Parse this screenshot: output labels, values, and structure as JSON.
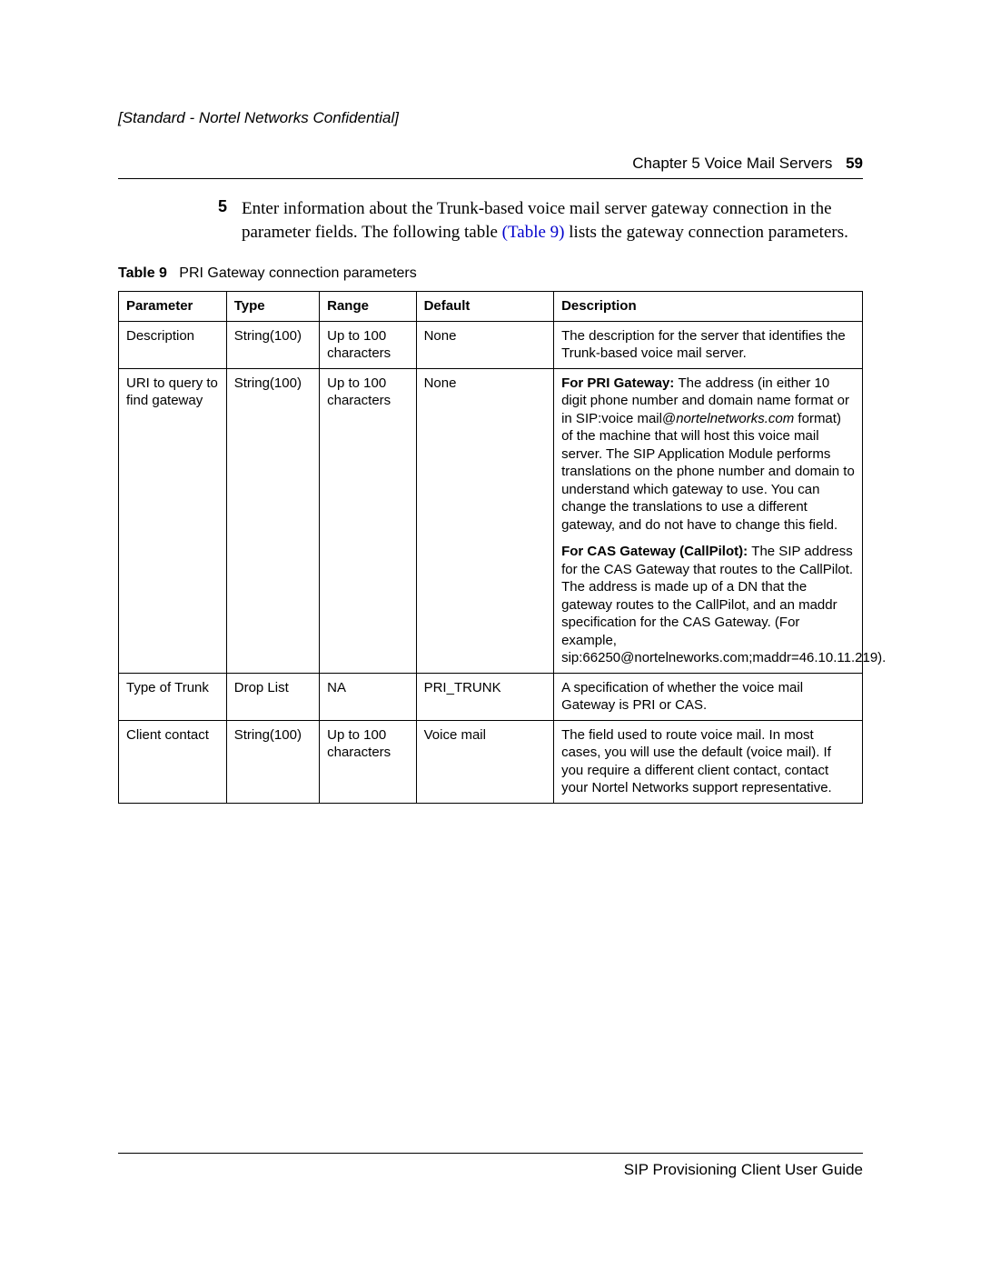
{
  "header": {
    "confidential": "[Standard - Nortel Networks Confidential]",
    "chapter": "Chapter 5  Voice Mail Servers",
    "page_number": "59"
  },
  "step": {
    "number": "5",
    "text_before_link": "Enter information about the Trunk-based voice mail server gateway connection in the parameter fields. The following table ",
    "link_text": "(Table 9)",
    "text_after_link": " lists the gateway connection parameters."
  },
  "table": {
    "caption_label": "Table 9",
    "caption_text": "PRI Gateway connection parameters",
    "columns": [
      "Parameter",
      "Type",
      "Range",
      "Default",
      "Description"
    ],
    "rows": [
      {
        "parameter": "Description",
        "type": "String(100)",
        "range": "Up to 100 characters",
        "default": "None",
        "description": [
          {
            "lead": "",
            "body": "The description for the server that identifies the Trunk-based voice mail server."
          }
        ]
      },
      {
        "parameter": "URI to query to find gateway",
        "type": "String(100)",
        "range": "Up to 100 characters",
        "default": "None",
        "description": [
          {
            "lead": "For PRI Gateway: ",
            "body_pre": "The address (in either 10 digit phone number and domain name format or in SIP:voice mail@",
            "body_ital": "nortelnetworks.com",
            "body_post": " format) of the machine that will host this voice mail server. The SIP Application Module performs translations on the phone number and domain to understand which gateway to use. You can change the translations to use a different gateway, and do not have to change this field."
          },
          {
            "lead": "For CAS Gateway (CallPilot): ",
            "body": "The SIP address for the CAS Gateway that routes to the CallPilot. The address is made up of a DN that the gateway routes to the CallPilot, and an maddr specification for the CAS Gateway. (For example, sip:66250@nortelneworks.com;maddr=46.10.11.219)."
          }
        ]
      },
      {
        "parameter": "Type of Trunk",
        "type": "Drop List",
        "range": "NA",
        "default": "PRI_TRUNK",
        "description": [
          {
            "lead": "",
            "body": "A specification of whether the voice mail Gateway is PRI or CAS."
          }
        ]
      },
      {
        "parameter": "Client contact",
        "type": "String(100)",
        "range": "Up to 100 characters",
        "default": "Voice mail",
        "description": [
          {
            "lead": "",
            "body": "The field used to route voice mail. In most cases, you will use the default (voice mail). If you require a different client contact, contact your Nortel Networks support representative."
          }
        ]
      }
    ]
  },
  "footer": {
    "text": "SIP Provisioning Client User Guide"
  }
}
